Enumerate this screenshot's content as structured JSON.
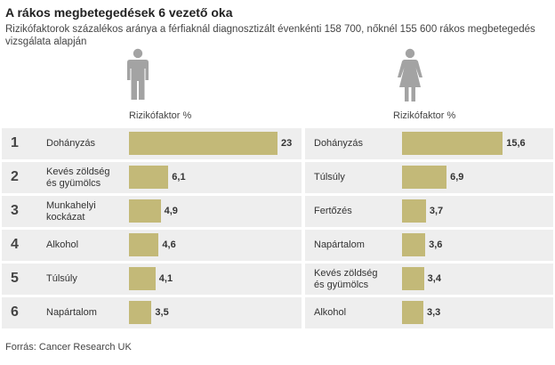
{
  "header": {
    "title": "A rákos megbetegedések 6 vezető oka",
    "subtitle": "Rizikófaktorok százalékos aránya a férfiaknál diagnosztizált évenkénti 158 700, nőknél 155 600 rákos megbetegedés vizsgálata alapján"
  },
  "icons": {
    "men": "male-figure-icon",
    "women": "female-figure-icon",
    "color": "#a3a3a3"
  },
  "colors": {
    "bar": "#c3b978",
    "row_band": "#eeeeee"
  },
  "ranks": [
    "1",
    "2",
    "3",
    "4",
    "5",
    "6"
  ],
  "source": "Forrás: Cancer Research UK",
  "chart_data": [
    {
      "type": "bar",
      "orientation": "horizontal",
      "title": "",
      "xlabel": "Rizikófaktor %",
      "xlim": [
        0,
        23
      ],
      "categories": [
        "Dohányzás",
        "Kevés zöldség és gyümölcs",
        "Munkahelyi kockázat",
        "Alkohol",
        "Túlsúly",
        "Napártalom"
      ],
      "values": [
        23,
        6.1,
        4.9,
        4.6,
        4.1,
        3.5
      ],
      "value_labels": [
        "23",
        "6,1",
        "4,9",
        "4,6",
        "4,1",
        "3,5"
      ]
    },
    {
      "type": "bar",
      "orientation": "horizontal",
      "title": "",
      "xlabel": "Rizikófaktor %",
      "xlim": [
        0,
        23
      ],
      "categories": [
        "Dohányzás",
        "Túlsúly",
        "Fertőzés",
        "Napártalom",
        "Kevés zöldség és gyümölcs",
        "Alkohol"
      ],
      "values": [
        15.6,
        6.9,
        3.7,
        3.6,
        3.4,
        3.3
      ],
      "value_labels": [
        "15,6",
        "6,9",
        "3,7",
        "3,6",
        "3,4",
        "3,3"
      ]
    }
  ]
}
